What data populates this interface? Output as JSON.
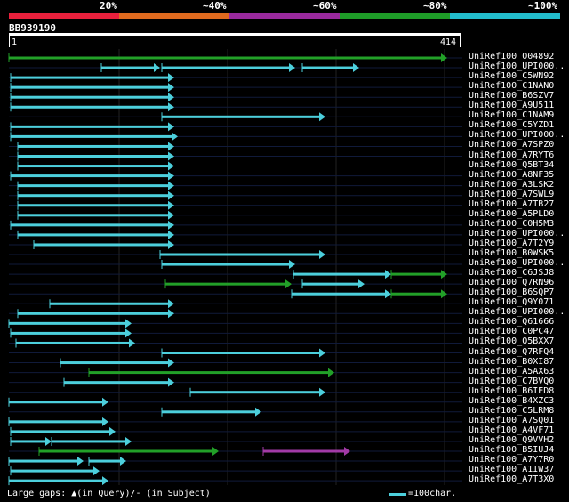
{
  "legend": {
    "segments": [
      {
        "label": "20%",
        "color": "#e8203c"
      },
      {
        "label": "~40%",
        "color": "#e06a1e"
      },
      {
        "label": "~60%",
        "color": "#9a2a9e"
      },
      {
        "label": "~80%",
        "color": "#1e9c28"
      },
      {
        "label": "~100%",
        "color": "#22bccc"
      }
    ]
  },
  "query": {
    "name": "BB939190",
    "start": "1",
    "end": "414"
  },
  "hits": [
    {
      "id": "UniRef100_O04892",
      "color": "green"
    },
    {
      "id": "UniRef100_UPI000..",
      "color": "cyan"
    },
    {
      "id": "UniRef100_C5WN92",
      "color": "cyan"
    },
    {
      "id": "UniRef100_C1NAN0",
      "color": "cyan"
    },
    {
      "id": "UniRef100_B6SZV7",
      "color": "cyan"
    },
    {
      "id": "UniRef100_A9U511",
      "color": "cyan"
    },
    {
      "id": "UniRef100_C1NAM9",
      "color": "cyan"
    },
    {
      "id": "UniRef100_C5YZD1",
      "color": "cyan"
    },
    {
      "id": "UniRef100_UPI000..",
      "color": "cyan"
    },
    {
      "id": "UniRef100_A7SPZ0",
      "color": "cyan"
    },
    {
      "id": "UniRef100_A7RYT6",
      "color": "cyan"
    },
    {
      "id": "UniRef100_Q5BT34",
      "color": "cyan"
    },
    {
      "id": "UniRef100_A8NF35",
      "color": "cyan"
    },
    {
      "id": "UniRef100_A3LSK2",
      "color": "cyan"
    },
    {
      "id": "UniRef100_A7SWL9",
      "color": "cyan"
    },
    {
      "id": "UniRef100_A7TB27",
      "color": "cyan"
    },
    {
      "id": "UniRef100_A5PLD0",
      "color": "cyan"
    },
    {
      "id": "UniRef100_C0H5M3",
      "color": "cyan"
    },
    {
      "id": "UniRef100_UPI000..",
      "color": "cyan"
    },
    {
      "id": "UniRef100_A7T2Y9",
      "color": "cyan"
    },
    {
      "id": "UniRef100_B0WSK5",
      "color": "cyan"
    },
    {
      "id": "UniRef100_UPI000..",
      "color": "cyan"
    },
    {
      "id": "UniRef100_C6JSJ8",
      "color": "mixed"
    },
    {
      "id": "UniRef100_Q7RN96",
      "color": "mixed"
    },
    {
      "id": "UniRef100_B6SQP7",
      "color": "mixed"
    },
    {
      "id": "UniRef100_Q9Y071",
      "color": "cyan"
    },
    {
      "id": "UniRef100_UPI000..",
      "color": "cyan"
    },
    {
      "id": "UniRef100_Q61666",
      "color": "cyan"
    },
    {
      "id": "UniRef100_C0PC47",
      "color": "cyan"
    },
    {
      "id": "UniRef100_Q5BXX7",
      "color": "cyan"
    },
    {
      "id": "UniRef100_Q7RFQ4",
      "color": "cyan"
    },
    {
      "id": "UniRef100_B0XI87",
      "color": "cyan"
    },
    {
      "id": "UniRef100_A5AX63",
      "color": "green"
    },
    {
      "id": "UniRef100_C7BVQ0",
      "color": "cyan"
    },
    {
      "id": "UniRef100_B6IED8",
      "color": "cyan"
    },
    {
      "id": "UniRef100_B4XZC3",
      "color": "cyan"
    },
    {
      "id": "UniRef100_C5LRM8",
      "color": "cyan"
    },
    {
      "id": "UniRef100_A7SQ01",
      "color": "cyan"
    },
    {
      "id": "UniRef100_A4VF71",
      "color": "cyan"
    },
    {
      "id": "UniRef100_Q9VVH2",
      "color": "cyan"
    },
    {
      "id": "UniRef100_B5IUJ4",
      "color": "mixed"
    },
    {
      "id": "UniRef100_A7Y7R0",
      "color": "cyan"
    },
    {
      "id": "UniRef100_A1IW37",
      "color": "cyan"
    },
    {
      "id": "UniRef100_A7T3X0",
      "color": "cyan"
    }
  ],
  "footer": {
    "gaps_text": "Large gaps: ▲(in Query)/- (in Subject)",
    "scale_text": "=100char."
  },
  "colors": {
    "cyan": "#4ccfdc",
    "green": "#22a028",
    "purple": "#a23aa6",
    "grid": "#222222",
    "row_line": "#101a3a"
  }
}
